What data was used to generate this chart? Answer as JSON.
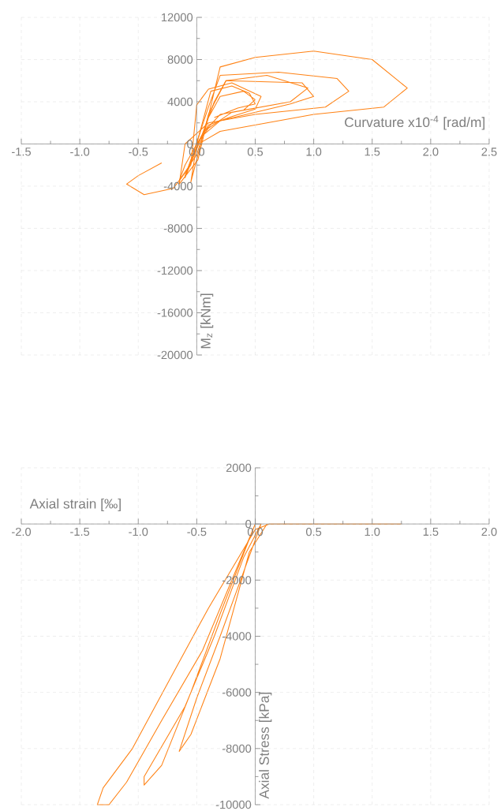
{
  "chart_data": [
    {
      "type": "line",
      "xlabel": "Curvature x10$^{-4}$ [rad/m]",
      "ylabel": "M$_{z}$ [kNm]",
      "xlim": [
        -1.5,
        2.5
      ],
      "ylim": [
        -20000,
        12000
      ],
      "xticks": [
        {
          "value": -1.5,
          "label": "-1.5"
        },
        {
          "value": -1.0,
          "label": "-1.0"
        },
        {
          "value": -0.5,
          "label": "-0.5"
        },
        {
          "value": 0,
          "label": "0.0"
        },
        {
          "value": 0.5,
          "label": "0.5"
        },
        {
          "value": 1.0,
          "label": "1.0"
        },
        {
          "value": 1.5,
          "label": "1.5"
        },
        {
          "value": 2.0,
          "label": "2.0"
        },
        {
          "value": 2.5,
          "label": "2.5"
        }
      ],
      "yticks": [
        -20000,
        -16000,
        -12000,
        -8000,
        -4000,
        0,
        4000,
        8000,
        12000
      ],
      "grid": true,
      "series": [
        {
          "color": "#ff8214",
          "x": [
            0,
            -0.1,
            -0.15,
            0,
            0.1,
            0.2,
            0.4,
            0.5,
            0.4,
            0.2,
            0.05,
            -0.05,
            -0.1,
            0,
            0.15,
            0.25,
            0.6,
            0.95,
            0.8,
            0.3,
            0.1,
            0,
            0.12,
            0.3,
            0.45,
            0.5,
            0.35,
            0.15
          ],
          "values": [
            0,
            -2000,
            -3500,
            -1000,
            2500,
            4500,
            5000,
            4200,
            3200,
            2800,
            1000,
            -1500,
            -3000,
            -500,
            4000,
            6000,
            6500,
            5300,
            4000,
            3000,
            1500,
            0,
            5000,
            5500,
            4800,
            3800,
            3400,
            2500
          ]
        },
        {
          "color": "#ff8214",
          "x": [
            0.02,
            -0.1,
            0.1,
            0.2,
            0.7,
            1.2,
            1.3,
            1.1,
            0.5,
            0.1,
            -0.1,
            -0.15,
            0.01,
            0.2,
            0.5,
            1.0,
            1.5,
            1.8,
            1.6,
            1.0,
            0.2,
            0.03
          ],
          "values": [
            200,
            -3200,
            3500,
            6500,
            6800,
            6200,
            5000,
            3500,
            2800,
            2000,
            0,
            -3800,
            -1500,
            7300,
            8200,
            8800,
            8000,
            5300,
            3500,
            2800,
            1200,
            100
          ]
        },
        {
          "color": "#ff8214",
          "x": [
            -0.3,
            -0.5,
            -0.6,
            -0.45,
            -0.2,
            -0.05,
            0,
            0.1,
            0.3,
            0.55,
            0.5,
            0.3,
            0.1,
            0,
            -0.05,
            0.1,
            0.25,
            0.9,
            1.0,
            0.8,
            0.2,
            0.05
          ],
          "values": [
            -1800,
            -3000,
            -3800,
            -4800,
            -4200,
            -2000,
            3700,
            5200,
            5800,
            4500,
            3300,
            2600,
            1800,
            0,
            -3600,
            2800,
            6000,
            5800,
            4500,
            3800,
            2200,
            800
          ]
        }
      ]
    },
    {
      "type": "line",
      "xlabel": "Axial strain [‰]",
      "ylabel": "Axial Stress [kPa]",
      "xlim": [
        -2.0,
        2.0
      ],
      "ylim": [
        -10000,
        2000
      ],
      "xticks": [
        {
          "value": -2.0,
          "label": "-2.0"
        },
        {
          "value": -1.5,
          "label": "-1.5"
        },
        {
          "value": -1.0,
          "label": "-1.0"
        },
        {
          "value": -0.5,
          "label": "-0.5"
        },
        {
          "value": 0,
          "label": "0.0"
        },
        {
          "value": 0.5,
          "label": "0.5"
        },
        {
          "value": 1.0,
          "label": "1.0"
        },
        {
          "value": 1.5,
          "label": "1.5"
        },
        {
          "value": 2.0,
          "label": "2.0"
        }
      ],
      "yticks": [
        -10000,
        -8000,
        -6000,
        -4000,
        -2000,
        0,
        2000
      ],
      "grid": true,
      "series": [
        {
          "color": "#ff8214",
          "x": [
            1.25,
            0.12,
            0,
            -0.4,
            -0.7,
            -1.05,
            -1.3,
            -1.35,
            -1.25,
            -1.1,
            -0.8,
            -0.45,
            -0.15,
            0,
            -0.3,
            -0.55,
            -0.8,
            -0.95,
            -0.95,
            -0.6,
            -0.35,
            -0.1,
            0.05,
            -0.3,
            -0.5,
            -0.65,
            -0.55,
            -0.3,
            -0.05,
            0.1
          ],
          "values": [
            0,
            0,
            -200,
            -3000,
            -5300,
            -8000,
            -9400,
            -10000,
            -10000,
            -9200,
            -7000,
            -4500,
            -1500,
            0,
            -3200,
            -6000,
            -8600,
            -9300,
            -9000,
            -6500,
            -4000,
            -1200,
            0,
            -4000,
            -6200,
            -8100,
            -7500,
            -4800,
            -1000,
            0
          ]
        }
      ]
    }
  ]
}
